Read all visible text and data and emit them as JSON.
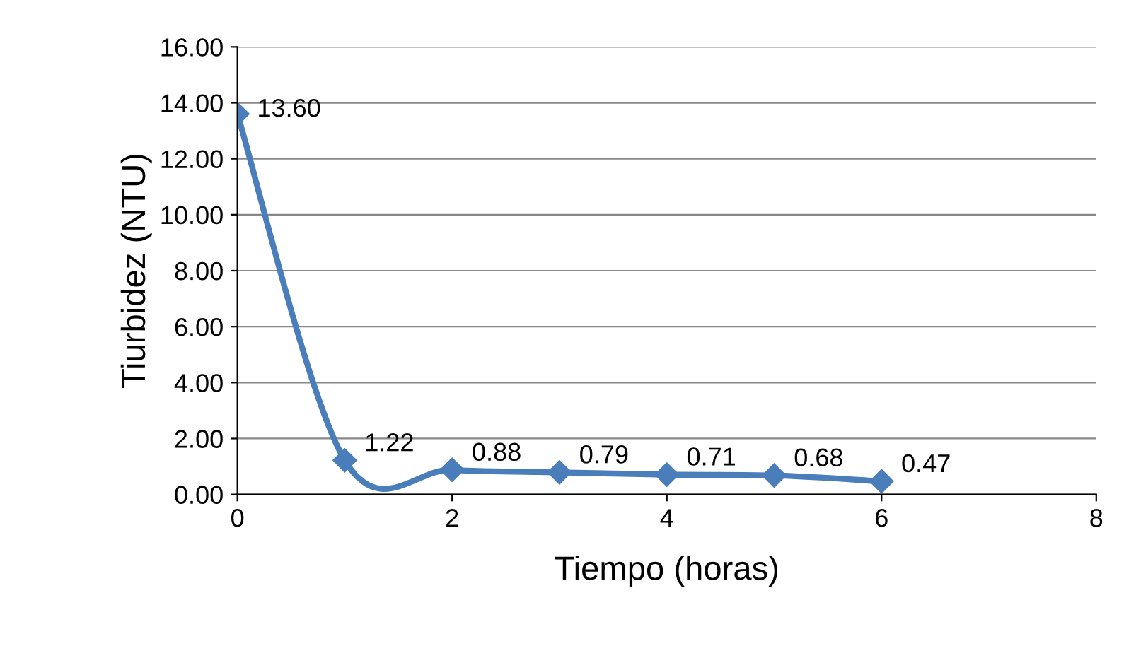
{
  "chart_data": {
    "type": "line",
    "xlabel": "Tiempo (horas)",
    "ylabel": "Tiurbidez (NTU)",
    "x": [
      0,
      1,
      2,
      3,
      4,
      5,
      6
    ],
    "series": [
      {
        "color": "#4a7ebb",
        "values": [
          13.6,
          1.22,
          0.88,
          0.79,
          0.71,
          0.68,
          0.47
        ],
        "value_labels": [
          "13.60",
          "1.22",
          "0.88",
          "0.79",
          "0.71",
          "0.68",
          "0.47"
        ]
      }
    ],
    "xlim": [
      0,
      8
    ],
    "xticks": [
      0,
      2,
      4,
      6,
      8
    ],
    "ylim": [
      0,
      16
    ],
    "yticks": [
      {
        "value": 0,
        "label": "0.00"
      },
      {
        "value": 2,
        "label": "2.00"
      },
      {
        "value": 4,
        "label": "4.00"
      },
      {
        "value": 6,
        "label": "6.00"
      },
      {
        "value": 8,
        "label": "8.00"
      },
      {
        "value": 10,
        "label": "10.00"
      },
      {
        "value": 12,
        "label": "12.00"
      },
      {
        "value": 14,
        "label": "14.00"
      },
      {
        "value": 16,
        "label": "16.00"
      }
    ],
    "grid": "y",
    "marker": "diamond",
    "line_style": "solid",
    "legend": false
  }
}
